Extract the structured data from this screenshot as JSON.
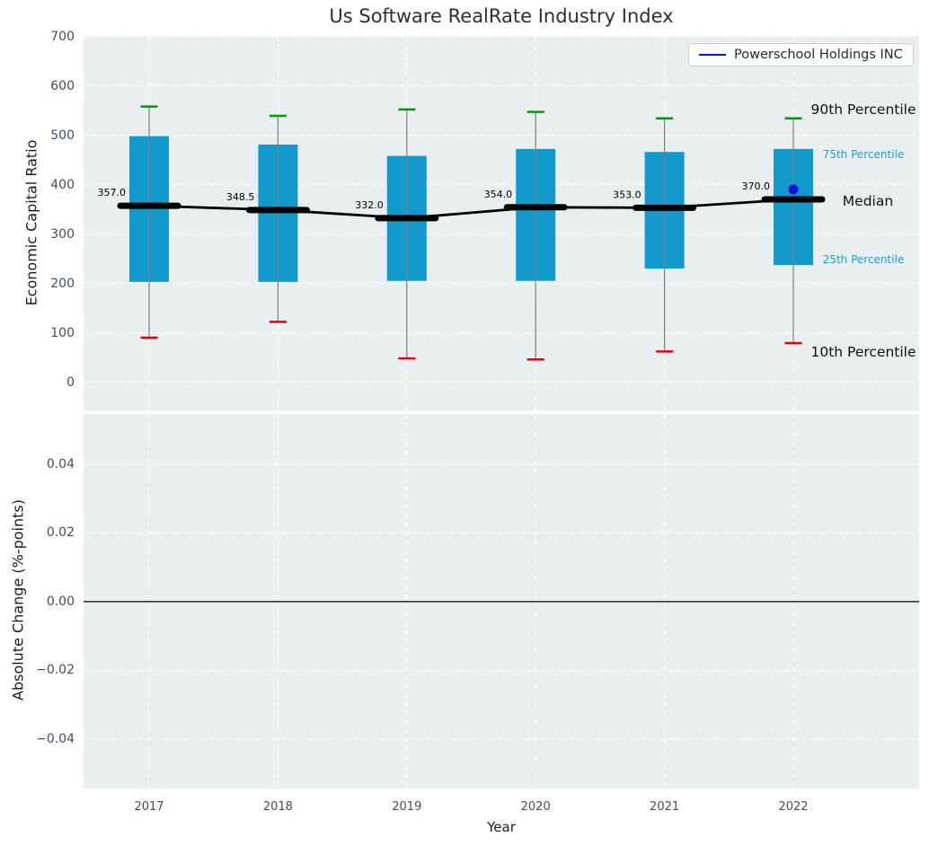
{
  "title": "Us Software RealRate Industry Index",
  "legend": {
    "label": "Powerschool Holdings INC"
  },
  "colors": {
    "plot_background": "#e9eef1",
    "grid": "#ffffff",
    "box_fill": "#129acd",
    "whisker": "#7f7f7f",
    "p90_cap": "#009a00",
    "p10_cap": "#e60000",
    "median": "#000000",
    "company": "#1212dd",
    "tick_text": "#3d4e63",
    "axis_text": "#1a1a1a",
    "percentile_small_text": "#1b9ed1",
    "title_text": "#2f2f2f"
  },
  "chart_data": [
    {
      "type": "box",
      "title": "Us Software RealRate Industry Index",
      "xlabel": "Year",
      "ylabel": "Economic Capital Ratio",
      "categories": [
        "2017",
        "2018",
        "2019",
        "2020",
        "2021",
        "2022"
      ],
      "yticks": [
        700,
        600,
        500,
        400,
        300,
        200,
        100,
        0
      ],
      "ytick_labels": [
        "700",
        "600",
        "500",
        "400",
        "300",
        "200",
        "100",
        "0"
      ],
      "ylim": [
        -57,
        701
      ],
      "grid": true,
      "legend_position": "upper right",
      "series": [
        {
          "name": "90th Percentile",
          "values": [
            558,
            539,
            552,
            547,
            534,
            534
          ]
        },
        {
          "name": "75th Percentile",
          "values": [
            498,
            481,
            458,
            472,
            466,
            472
          ]
        },
        {
          "name": "Median",
          "values": [
            357.0,
            348.5,
            332.0,
            354.0,
            353.0,
            370.0
          ]
        },
        {
          "name": "25th Percentile",
          "values": [
            203,
            203,
            205,
            205,
            230,
            237
          ]
        },
        {
          "name": "10th Percentile",
          "values": [
            90,
            122,
            48,
            46,
            62,
            79
          ]
        }
      ],
      "median_annotations": [
        "357.0",
        "348.5",
        "332.0",
        "354.0",
        "353.0",
        "370.0"
      ],
      "company_series": {
        "name": "Powerschool Holdings INC",
        "year": "2022",
        "value": 390
      },
      "percentile_labels": {
        "p90": "90th Percentile",
        "p75": "75th Percentile",
        "median": "Median",
        "p25": "25th Percentile",
        "p10": "10th Percentile"
      }
    },
    {
      "type": "line",
      "xlabel": "Year",
      "ylabel": "Absolute Change (%-points)",
      "categories": [
        "2017",
        "2018",
        "2019",
        "2020",
        "2021",
        "2022"
      ],
      "yticks": [
        0.04,
        0.02,
        0.0,
        -0.02,
        -0.04
      ],
      "ytick_labels": [
        "0.04",
        "0.02",
        "0.00",
        "−0.02",
        "−0.04"
      ],
      "ylim": [
        -0.0544,
        0.0546
      ],
      "grid": true,
      "zero_line": 0.0,
      "series": []
    }
  ]
}
